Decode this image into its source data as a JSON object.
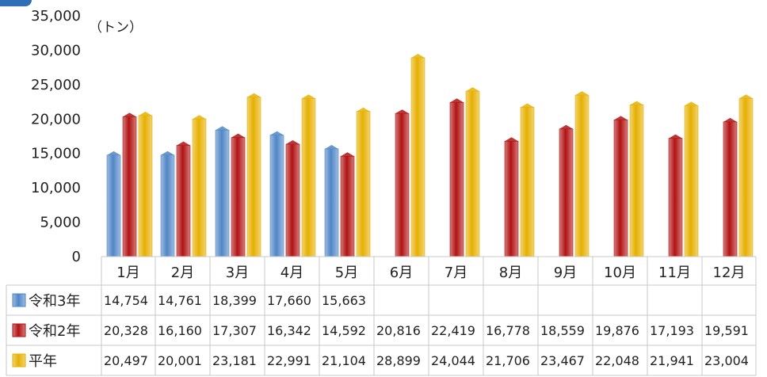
{
  "chart_data": {
    "type": "bar",
    "unit_label": "（トン）",
    "categories": [
      "1月",
      "2月",
      "3月",
      "4月",
      "5月",
      "6月",
      "7月",
      "8月",
      "9月",
      "10月",
      "11月",
      "12月"
    ],
    "ylim": [
      0,
      35000
    ],
    "yticks": [
      0,
      5000,
      10000,
      15000,
      20000,
      25000,
      30000,
      35000
    ],
    "ytick_labels": [
      "0",
      "5,000",
      "10,000",
      "15,000",
      "20,000",
      "25,000",
      "30,000",
      "35,000"
    ],
    "grid": false,
    "legend_placement": "data-table",
    "series": [
      {
        "name": "令和3年",
        "color": "#4f86c6",
        "values": [
          14754,
          14761,
          18399,
          17660,
          15663,
          null,
          null,
          null,
          null,
          null,
          null,
          null
        ],
        "labels": [
          "14,754",
          "14,761",
          "18,399",
          "17,660",
          "15,663",
          "",
          "",
          "",
          "",
          "",
          "",
          ""
        ]
      },
      {
        "name": "令和2年",
        "color": "#b11212",
        "values": [
          20328,
          16160,
          17307,
          16342,
          14592,
          20816,
          22419,
          16778,
          18559,
          19876,
          17193,
          19591
        ],
        "labels": [
          "20,328",
          "16,160",
          "17,307",
          "16,342",
          "14,592",
          "20,816",
          "22,419",
          "16,778",
          "18,559",
          "19,876",
          "17,193",
          "19,591"
        ]
      },
      {
        "name": "平年",
        "color": "#e6b000",
        "values": [
          20497,
          20001,
          23181,
          22991,
          21104,
          28899,
          24044,
          21706,
          23467,
          22048,
          21941,
          23004
        ],
        "labels": [
          "20,497",
          "20,001",
          "23,181",
          "22,991",
          "21,104",
          "28,899",
          "24,044",
          "21,706",
          "23,467",
          "22,048",
          "21,941",
          "23,004"
        ]
      }
    ]
  }
}
